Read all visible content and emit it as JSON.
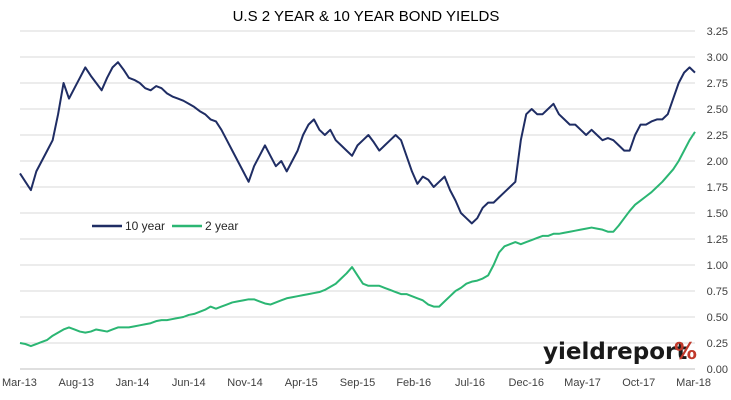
{
  "chart_data": {
    "type": "line",
    "title": "U.S 2 YEAR & 10 YEAR BOND YIELDS",
    "x_tick_labels": [
      "Mar-13",
      "Aug-13",
      "Jan-14",
      "Jun-14",
      "Nov-14",
      "Apr-15",
      "Sep-15",
      "Feb-16",
      "Jul-16",
      "Dec-16",
      "May-17",
      "Oct-17",
      "Mar-18"
    ],
    "y_tick_labels": [
      "0.00",
      "0.25",
      "0.50",
      "0.75",
      "1.00",
      "1.25",
      "1.50",
      "1.75",
      "2.00",
      "2.25",
      "2.50",
      "2.75",
      "3.00",
      "3.25"
    ],
    "ylim": [
      0,
      3.25
    ],
    "grid": true,
    "legend_position": "middle-left",
    "series": [
      {
        "name": "10 year",
        "color": "#1f2d64",
        "values": [
          1.88,
          1.8,
          1.72,
          1.9,
          2.0,
          2.1,
          2.2,
          2.45,
          2.75,
          2.6,
          2.7,
          2.8,
          2.9,
          2.82,
          2.75,
          2.68,
          2.8,
          2.9,
          2.95,
          2.88,
          2.8,
          2.78,
          2.75,
          2.7,
          2.68,
          2.72,
          2.7,
          2.65,
          2.62,
          2.6,
          2.58,
          2.55,
          2.52,
          2.48,
          2.45,
          2.4,
          2.38,
          2.3,
          2.2,
          2.1,
          2.0,
          1.9,
          1.8,
          1.95,
          2.05,
          2.15,
          2.05,
          1.95,
          2.0,
          1.9,
          2.0,
          2.1,
          2.25,
          2.35,
          2.4,
          2.3,
          2.25,
          2.3,
          2.2,
          2.15,
          2.1,
          2.05,
          2.15,
          2.2,
          2.25,
          2.18,
          2.1,
          2.15,
          2.2,
          2.25,
          2.2,
          2.05,
          1.9,
          1.78,
          1.85,
          1.82,
          1.75,
          1.8,
          1.85,
          1.72,
          1.62,
          1.5,
          1.45,
          1.4,
          1.45,
          1.55,
          1.6,
          1.6,
          1.65,
          1.7,
          1.75,
          1.8,
          2.2,
          2.45,
          2.5,
          2.45,
          2.45,
          2.5,
          2.55,
          2.45,
          2.4,
          2.35,
          2.35,
          2.3,
          2.25,
          2.3,
          2.25,
          2.2,
          2.22,
          2.2,
          2.15,
          2.1,
          2.1,
          2.25,
          2.35,
          2.35,
          2.38,
          2.4,
          2.4,
          2.45,
          2.6,
          2.75,
          2.85,
          2.9,
          2.85
        ]
      },
      {
        "name": "2 year",
        "color": "#2bb673",
        "values": [
          0.25,
          0.24,
          0.22,
          0.24,
          0.26,
          0.28,
          0.32,
          0.35,
          0.38,
          0.4,
          0.38,
          0.36,
          0.35,
          0.36,
          0.38,
          0.37,
          0.36,
          0.38,
          0.4,
          0.4,
          0.4,
          0.41,
          0.42,
          0.43,
          0.44,
          0.46,
          0.47,
          0.47,
          0.48,
          0.49,
          0.5,
          0.52,
          0.53,
          0.55,
          0.57,
          0.6,
          0.58,
          0.6,
          0.62,
          0.64,
          0.65,
          0.66,
          0.67,
          0.67,
          0.65,
          0.63,
          0.62,
          0.64,
          0.66,
          0.68,
          0.69,
          0.7,
          0.71,
          0.72,
          0.73,
          0.74,
          0.76,
          0.79,
          0.82,
          0.87,
          0.92,
          0.98,
          0.9,
          0.82,
          0.8,
          0.8,
          0.8,
          0.78,
          0.76,
          0.74,
          0.72,
          0.72,
          0.7,
          0.68,
          0.66,
          0.62,
          0.6,
          0.6,
          0.65,
          0.7,
          0.75,
          0.78,
          0.82,
          0.84,
          0.85,
          0.87,
          0.9,
          1.0,
          1.12,
          1.18,
          1.2,
          1.22,
          1.2,
          1.22,
          1.24,
          1.26,
          1.28,
          1.28,
          1.3,
          1.3,
          1.31,
          1.32,
          1.33,
          1.34,
          1.35,
          1.36,
          1.35,
          1.34,
          1.32,
          1.32,
          1.38,
          1.45,
          1.52,
          1.58,
          1.62,
          1.66,
          1.7,
          1.75,
          1.8,
          1.86,
          1.92,
          2.0,
          2.1,
          2.2,
          2.28
        ]
      }
    ]
  },
  "brand": {
    "text": "yieldreport",
    "mark": "%",
    "text_color": "#1a1a1a",
    "mark_color": "#c0392b"
  }
}
